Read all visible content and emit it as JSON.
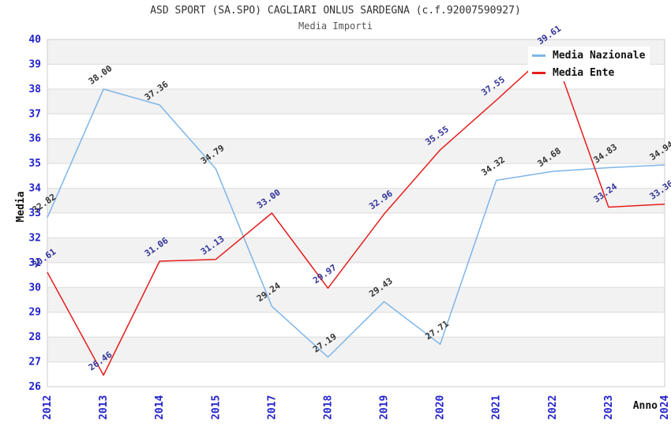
{
  "header": {
    "title": "ASD SPORT (SA.SPO) CAGLIARI ONLUS SARDEGNA (c.f.92007590927)",
    "subtitle": "Media Importi"
  },
  "chart_data": {
    "type": "line",
    "title": "ASD SPORT (SA.SPO) CAGLIARI ONLUS SARDEGNA (c.f.92007590927)",
    "subtitle": "Media Importi",
    "xlabel": "Anno",
    "ylabel": "Media",
    "x": [
      "2012",
      "2013",
      "2014",
      "2015",
      "2017",
      "2018",
      "2019",
      "2020",
      "2021",
      "2022",
      "2023",
      "2024"
    ],
    "series": [
      {
        "name": "Media Nazionale",
        "color": "#7EB5E8",
        "label_color": "#333333",
        "values": [
          32.82,
          38.0,
          37.36,
          34.79,
          29.24,
          27.19,
          29.43,
          27.71,
          34.32,
          34.68,
          34.83,
          34.94
        ]
      },
      {
        "name": "Media Ente",
        "color": "#E81C1C",
        "label_color": "#333399",
        "values": [
          30.61,
          26.46,
          31.06,
          31.13,
          33.0,
          29.97,
          32.96,
          35.55,
          37.55,
          39.61,
          33.24,
          33.36
        ]
      }
    ],
    "ylim": [
      26,
      40
    ],
    "y_tick_step": 1,
    "grid": "horizontal-bands",
    "band_fill": "#f2f2f2",
    "grid_line_color": "#dcdcdc",
    "plot_border_color": "#cccccc",
    "tick_label_color": "#2222CC",
    "axis_title_color": "#111111",
    "legend_position": "top-right",
    "value_labels": "rotated -35deg above each point"
  }
}
